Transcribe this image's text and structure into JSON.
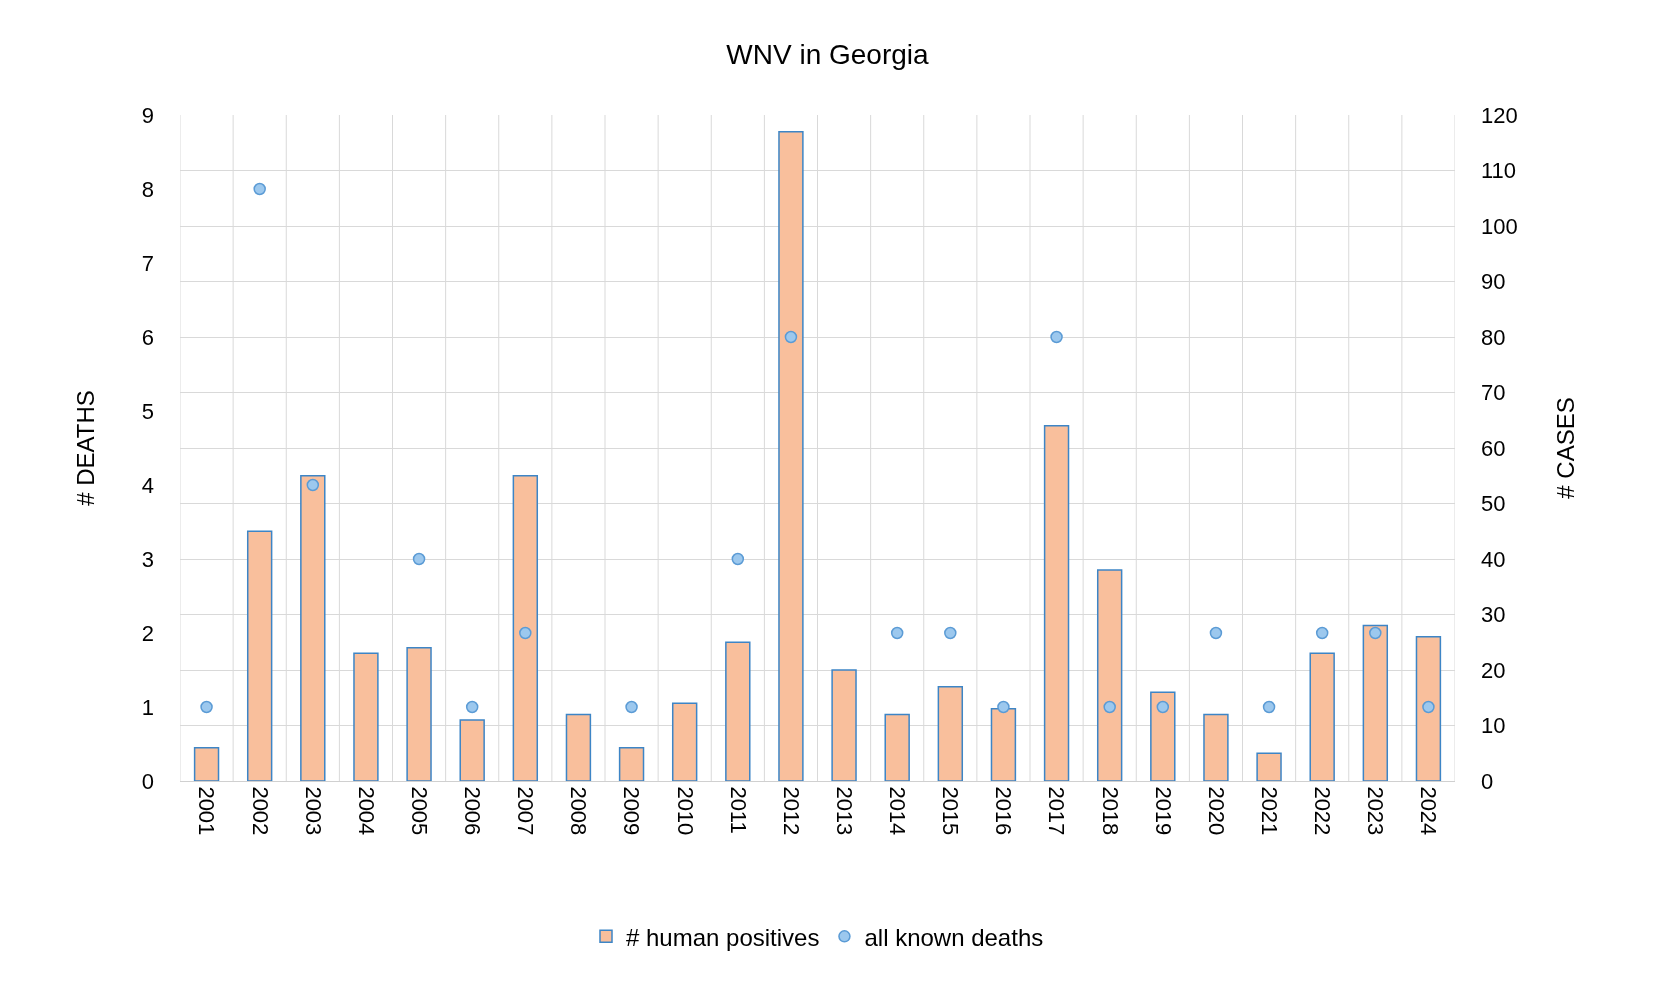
{
  "chart_data": {
    "type": "bar",
    "title": "WNV in Georgia",
    "ylabel": "# DEATHS",
    "y2label": "# CASES",
    "categories": [
      "2001",
      "2002",
      "2003",
      "2004",
      "2005",
      "2006",
      "2007",
      "2008",
      "2009",
      "2010",
      "2011",
      "2012",
      "2013",
      "2014",
      "2015",
      "2016",
      "2017",
      "2018",
      "2019",
      "2020",
      "2021",
      "2022",
      "2023",
      "2024"
    ],
    "series": [
      {
        "name": "# human positives",
        "axis": "y2",
        "color": "#f9bf9c",
        "values": [
          6,
          45,
          55,
          23,
          24,
          11,
          55,
          12,
          6,
          14,
          25,
          117,
          20,
          12,
          17,
          13,
          64,
          38,
          16,
          12,
          5,
          23,
          28,
          26
        ]
      },
      {
        "name": "all known deaths",
        "type": "scatter",
        "axis": "y",
        "color": "#9cc8ee",
        "marker": "circle",
        "values": [
          1,
          8,
          4,
          null,
          3,
          1,
          2,
          null,
          1,
          null,
          3,
          6,
          null,
          2,
          2,
          1,
          6,
          1,
          1,
          2,
          1,
          2,
          2,
          1
        ]
      }
    ],
    "ylim": [
      0,
      9
    ],
    "yticks": [
      0,
      1,
      2,
      3,
      4,
      5,
      6,
      7,
      8,
      9
    ],
    "y2lim": [
      0,
      120
    ],
    "y2ticks": [
      0,
      10,
      20,
      30,
      40,
      50,
      60,
      70,
      80,
      90,
      100,
      110,
      120
    ],
    "grid": true,
    "legend": "bottom"
  }
}
